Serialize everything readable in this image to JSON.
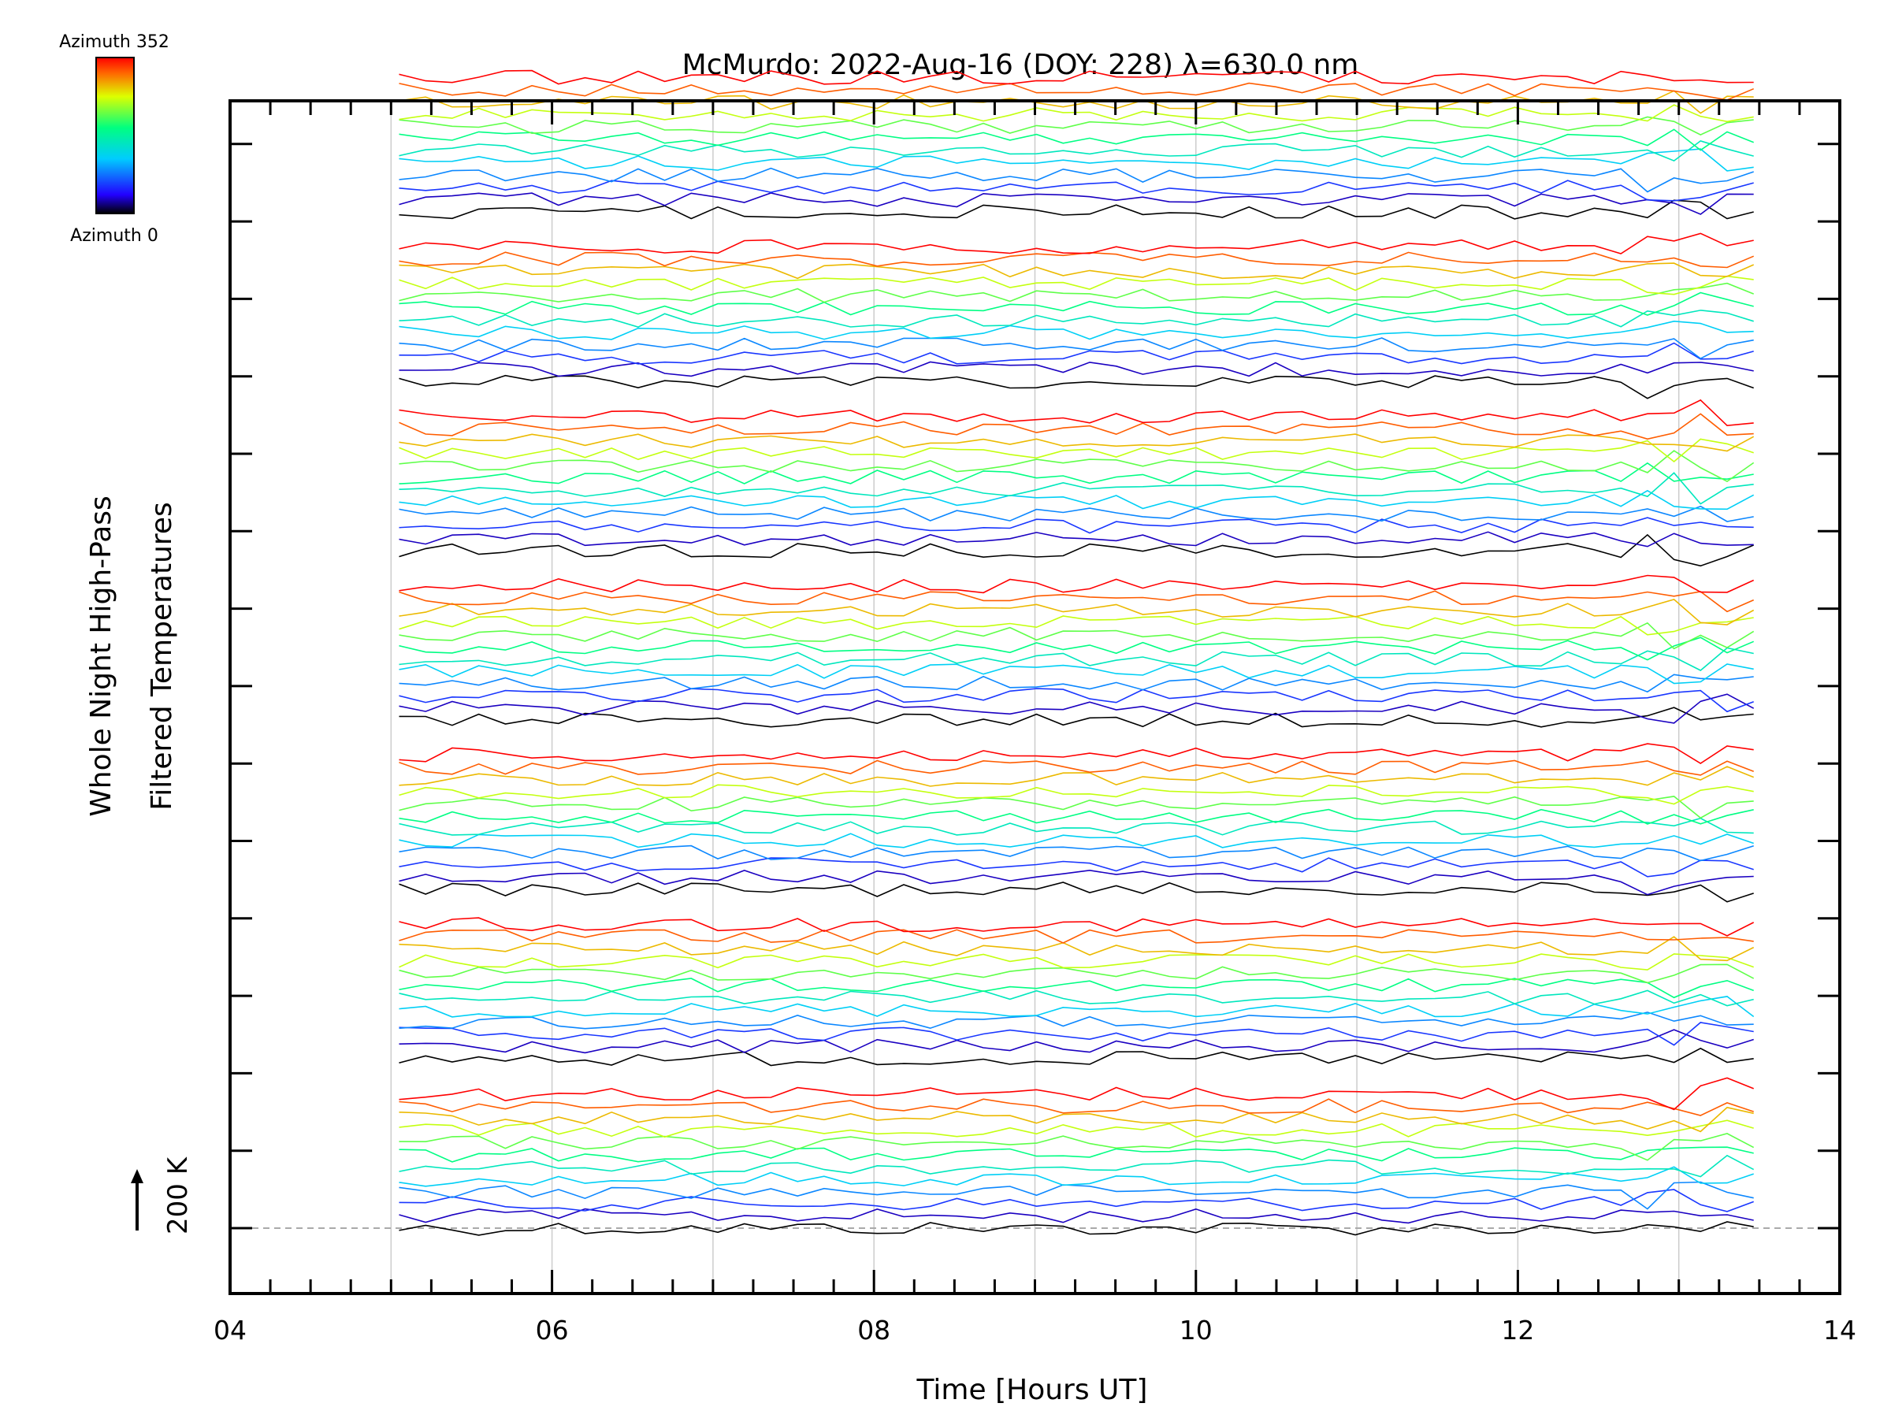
{
  "chart_data": {
    "type": "line",
    "title": "McMurdo: 2022-Aug-16 (DOY: 228) λ=630.0 nm",
    "xlabel": "Time [Hours UT]",
    "ylabel_line1": "Whole Night High-Pass",
    "ylabel_line2": "Filtered Temperatures",
    "xlim": [
      4,
      14
    ],
    "x_ticks": [
      "04",
      "06",
      "08",
      "10",
      "12",
      "14"
    ],
    "x_vertical_gridlines": [
      5,
      6,
      7,
      8,
      9,
      10,
      11,
      12,
      13
    ],
    "grid": true,
    "time_range_hours": [
      5.05,
      13.55
    ],
    "scale_bar_label": "200 K",
    "colorbar": {
      "top_label": "Azimuth  352",
      "bottom_label": "Azimuth  0",
      "colormap": "rainbow",
      "min_azimuth": 0,
      "max_azimuth": 352,
      "colors": [
        "#000000",
        "#2200ff",
        "#00ccff",
        "#00ff80",
        "#ddff00",
        "#ff6600",
        "#ff0000"
      ]
    },
    "series_groups": 7,
    "azimuths_per_group": [
      0,
      32,
      64,
      96,
      128,
      160,
      192,
      224,
      256,
      288,
      320,
      352
    ]
  }
}
